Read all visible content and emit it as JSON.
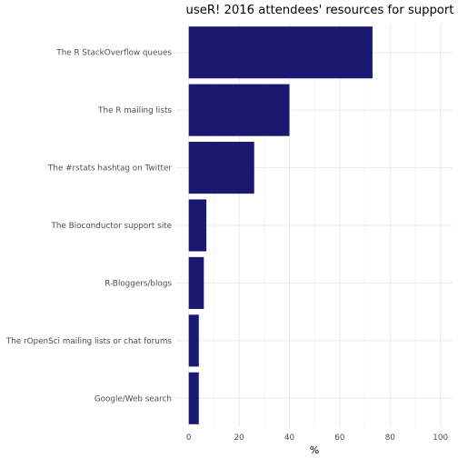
{
  "chart_data": {
    "type": "bar",
    "orientation": "horizontal",
    "title": "useR! 2016 attendees' resources for support",
    "xlabel": "%",
    "ylabel": "",
    "categories": [
      "The R StackOverflow queues",
      "The R mailing lists",
      "The #rstats hashtag on Twitter",
      "The Bioconductor support site",
      "R-Bloggers/blogs",
      "The rOpenSci mailing lists or chat forums",
      "Google/Web search"
    ],
    "values": [
      73,
      40,
      26,
      7,
      6,
      4,
      4
    ],
    "xlim": [
      0,
      100
    ],
    "xticks": [
      "0",
      "20",
      "40",
      "60",
      "80",
      "100"
    ],
    "grid": true,
    "legend": "none",
    "bar_color": "#191970"
  }
}
